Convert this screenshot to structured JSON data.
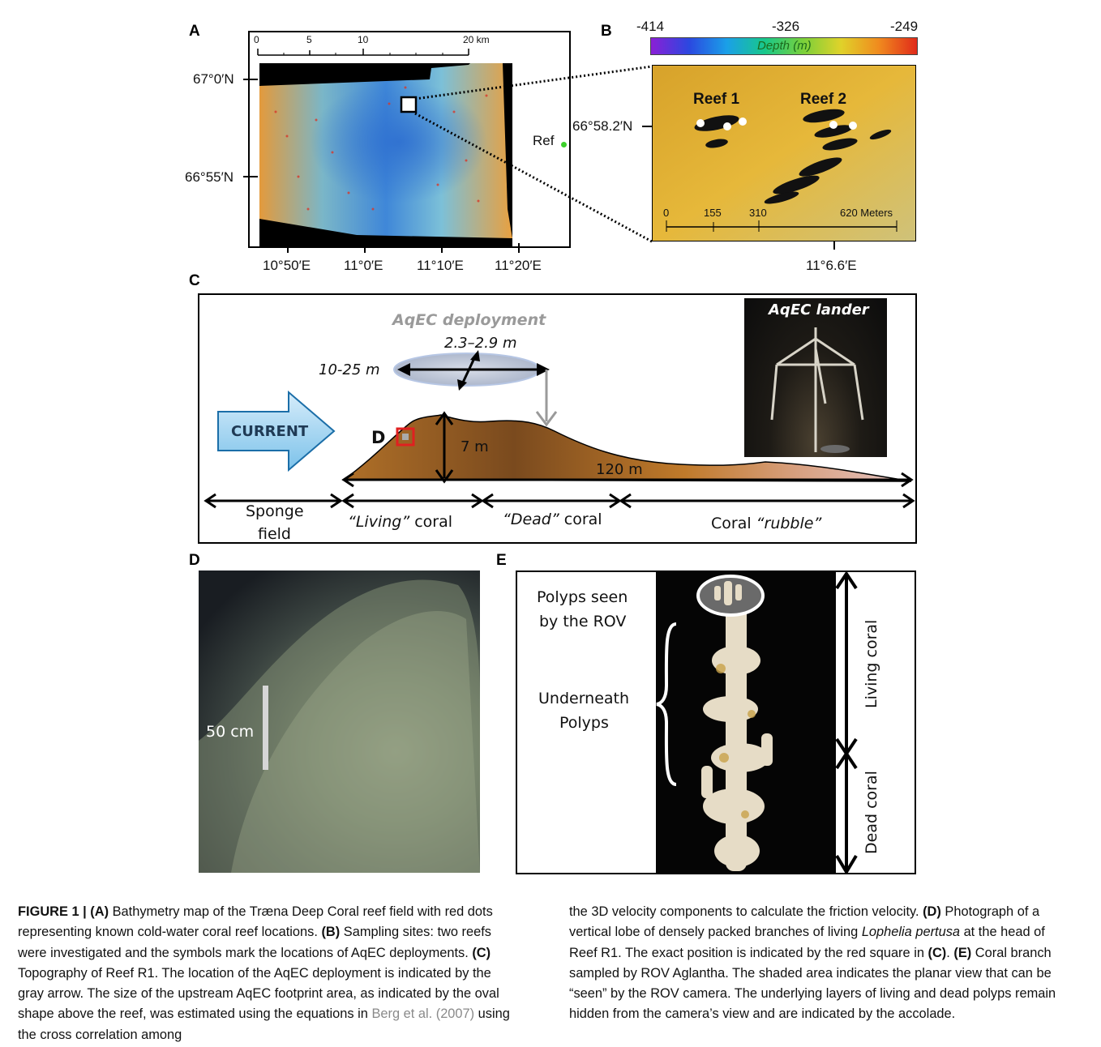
{
  "panels": {
    "a": "A",
    "b": "B",
    "c": "C",
    "d": "D",
    "e": "E"
  },
  "panel_a": {
    "scale_ticks": [
      "0",
      "5",
      "10",
      "20 km"
    ],
    "lat_labels": [
      "67°0′N",
      "66°55′N"
    ],
    "lon_labels": [
      "10°50′E",
      "11°0′E",
      "11°10′E",
      "11°20′E"
    ],
    "ref_label": "Ref"
  },
  "panel_b": {
    "depth_min": "-414",
    "depth_mid": "-326",
    "depth_max": "-249",
    "colorbar_title": "Depth (m)",
    "reef1": "Reef 1",
    "reef2": "Reef 2",
    "lat_label": "66°58.2′N",
    "lon_label": "11°6.6′E",
    "scale_ticks": [
      "0",
      "155",
      "310",
      "620 Meters"
    ]
  },
  "panel_c": {
    "deployment_title": "AqEC deployment",
    "width_label": "2.3–2.9 m",
    "length_label": "10-25 m",
    "current": "CURRENT",
    "marker": "D",
    "height_label": "7 m",
    "length_reef": "120 m",
    "lander_title": "AqEC lander",
    "zone_sponge_1": "Sponge",
    "zone_sponge_2": "field",
    "zone_living_q": "“Living”",
    "zone_living": " coral",
    "zone_dead_q": "“Dead”",
    "zone_dead": " coral",
    "zone_rubble": "Coral ",
    "zone_rubble_q": "“rubble”"
  },
  "panel_d": {
    "scale_label": "50 cm"
  },
  "panel_e": {
    "polyps_seen_1": "Polyps seen",
    "polyps_seen_2": "by the ROV",
    "underneath_1": "Underneath",
    "underneath_2": "Polyps",
    "living": "Living coral",
    "dead": "Dead coral"
  },
  "caption": {
    "fig_label": "FIGURE 1 | ",
    "a_tag": "(A)",
    "a_text": " Bathymetry map of the Træna Deep Coral reef field with red dots representing known cold-water coral reef locations. ",
    "b_tag": "(B)",
    "b_text": " Sampling sites: two reefs were investigated and the symbols mark the locations of AqEC deployments. ",
    "c_tag": "(C)",
    "c_text": " Topography of Reef R1. The location of the AqEC deployment is indicated by the gray arrow. The size of the upstream AqEC footprint area, as indicated by the oval shape above the reef, was estimated using the equations in ",
    "cite": "Berg et al. (2007)",
    "c_text2": " using the cross correlation among the 3D velocity components to calculate the friction velocity. ",
    "d_tag": "(D)",
    "d_text": " Photograph of a vertical lobe of densely packed branches of living ",
    "d_species": "Lophelia pertusa",
    "d_text2": " at the head of Reef R1. The exact position is indicated by the red square in ",
    "d_ref": "(C)",
    "d_text3": ". ",
    "e_tag": "(E)",
    "e_text": " Coral branch sampled by ROV Aglantha. The shaded area indicates the planar view that can be “seen” by the ROV camera. The underlying layers of living and dead polyps remain hidden from the camera’s view and are indicated by the accolade."
  }
}
